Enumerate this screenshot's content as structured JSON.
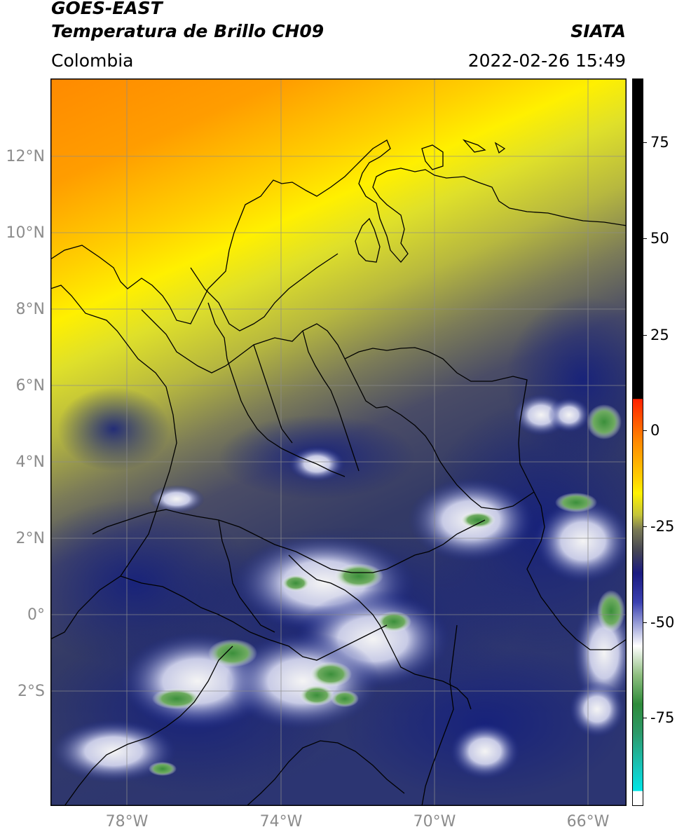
{
  "header": {
    "satellite": "GOES-EAST",
    "product": "Temperatura de Brillo CH09",
    "region": "Colombia",
    "organization": "SIATA",
    "datetime": "2022-02-26 15:49"
  },
  "map": {
    "lat_labels": [
      "12°N",
      "10°N",
      "8°N",
      "6°N",
      "4°N",
      "2°N",
      "0°",
      "2°S"
    ],
    "lon_labels": [
      "78°W",
      "74°W",
      "70°W",
      "66°W"
    ],
    "gridline_color": "#8c8c8c"
  },
  "colorbar": {
    "ticks": [
      "75",
      "50",
      "25",
      "0",
      "-25",
      "-50",
      "-75"
    ]
  }
}
